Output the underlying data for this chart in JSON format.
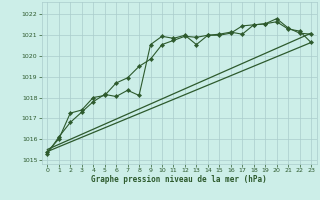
{
  "title": "Graphe pression niveau de la mer (hPa)",
  "background_color": "#cceee8",
  "grid_color": "#aacccc",
  "line_color": "#2d5a2d",
  "xlim": [
    -0.5,
    23.5
  ],
  "ylim": [
    1014.8,
    1022.6
  ],
  "yticks": [
    1015,
    1016,
    1017,
    1018,
    1019,
    1020,
    1021,
    1022
  ],
  "xticks": [
    0,
    1,
    2,
    3,
    4,
    5,
    6,
    7,
    8,
    9,
    10,
    11,
    12,
    13,
    14,
    15,
    16,
    17,
    18,
    19,
    20,
    21,
    22,
    23
  ],
  "series": [
    {
      "x": [
        0,
        1,
        2,
        3,
        4,
        5,
        6,
        7,
        8,
        9,
        10,
        11,
        12,
        13,
        14,
        15,
        16,
        17,
        18,
        19,
        20,
        21,
        22,
        23
      ],
      "y": [
        1015.3,
        1016.1,
        1016.8,
        1017.3,
        1017.8,
        1018.15,
        1018.05,
        1018.35,
        1018.1,
        1020.55,
        1020.95,
        1020.85,
        1021.0,
        1020.55,
        1021.0,
        1021.05,
        1021.15,
        1021.05,
        1021.5,
        1021.55,
        1021.8,
        1021.35,
        1021.1,
        1021.05
      ],
      "marker": "D",
      "markersize": 2.2,
      "linewidth": 0.8
    },
    {
      "x": [
        0,
        1,
        2,
        3,
        4,
        5,
        6,
        7,
        8,
        9,
        10,
        11,
        12,
        13,
        14,
        15,
        16,
        17,
        18,
        19,
        20,
        21,
        22,
        23
      ],
      "y": [
        1015.4,
        1016.0,
        1017.25,
        1017.4,
        1018.0,
        1018.1,
        1018.7,
        1018.95,
        1019.5,
        1019.85,
        1020.55,
        1020.75,
        1020.95,
        1020.9,
        1021.0,
        1021.0,
        1021.1,
        1021.45,
        1021.5,
        1021.55,
        1021.65,
        1021.3,
        1021.2,
        1020.65
      ],
      "marker": "D",
      "markersize": 2.2,
      "linewidth": 0.8
    },
    {
      "x": [
        0,
        23
      ],
      "y": [
        1015.4,
        1020.65
      ],
      "marker": null,
      "markersize": 0,
      "linewidth": 0.9
    },
    {
      "x": [
        0,
        23
      ],
      "y": [
        1015.5,
        1021.1
      ],
      "marker": null,
      "markersize": 0,
      "linewidth": 0.9
    }
  ]
}
